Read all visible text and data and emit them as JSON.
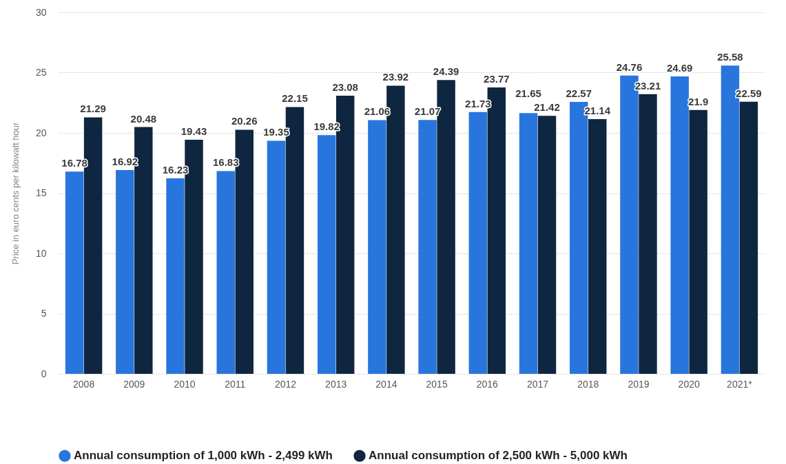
{
  "chart_data": {
    "type": "bar",
    "ylabel": "Price in euro cents per kilowatt hour",
    "categories": [
      "2008",
      "2009",
      "2010",
      "2011",
      "2012",
      "2013",
      "2014",
      "2015",
      "2016",
      "2017",
      "2018",
      "2019",
      "2020",
      "2021*"
    ],
    "series": [
      {
        "name": "Annual consumption of 1,000 kWh - 2,499 kWh",
        "color": "#2876dd",
        "values": [
          16.78,
          16.92,
          16.23,
          16.83,
          19.35,
          19.82,
          21.06,
          21.07,
          21.73,
          21.65,
          22.57,
          24.76,
          24.69,
          25.58
        ]
      },
      {
        "name": "Annual consumption of 2,500 kWh - 5,000 kWh",
        "color": "#0f2640",
        "values": [
          21.29,
          20.48,
          19.43,
          20.26,
          22.15,
          23.08,
          23.92,
          24.39,
          23.77,
          21.42,
          21.14,
          23.21,
          21.9,
          22.59
        ]
      }
    ],
    "ylim": [
      0,
      30
    ],
    "yticks": [
      0,
      5,
      10,
      15,
      20,
      25,
      30
    ],
    "grid": "y",
    "legend": "bottom",
    "data_labels": true
  }
}
